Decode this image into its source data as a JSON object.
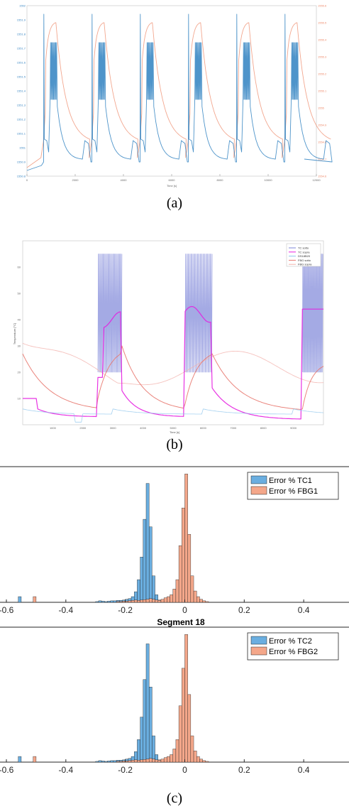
{
  "captions": {
    "a": "(a)",
    "b": "(b)",
    "c": "(c)"
  },
  "chart_data": [
    {
      "id": "a",
      "type": "line",
      "xlabel": "Time [s]",
      "ylabel": "",
      "y2label": "",
      "xlim": [
        0,
        12000
      ],
      "x_ticks": [
        "0",
        "2000",
        "4000",
        "6000",
        "8000",
        "10000",
        "12000"
      ],
      "y_ticks_left": [
        "1550.8",
        "1550.9",
        "1551",
        "1551.1",
        "1551.2",
        "1551.3",
        "1551.4",
        "1551.5",
        "1551.6",
        "1551.7",
        "1551.8",
        "1551.9",
        "1552"
      ],
      "y_ticks_right": [
        "1554.6",
        "1554.7",
        "1554.8",
        "1554.9",
        "1555",
        "1555.1",
        "1555.2",
        "1555.3",
        "1555.4",
        "1555.5",
        "1555.6"
      ],
      "cycles": 6,
      "series": [
        {
          "color": "#3b88c4"
        },
        {
          "color": "#ee8a6a"
        }
      ]
    },
    {
      "id": "b",
      "type": "line",
      "xlabel": "Time [s]",
      "ylabel": "Temperature [°C]",
      "xlim": [
        0,
        10000
      ],
      "x_ticks": [
        "1000",
        "2000",
        "3000",
        "4000",
        "5000",
        "6000",
        "7000",
        "8000",
        "9000"
      ],
      "y_ticks": [
        "10",
        "20",
        "30",
        "40",
        "50",
        "60"
      ],
      "legend": [
        "TC sotto",
        "TC sopra",
        "DS18B20",
        "FBG sotto",
        "FBG sopra"
      ],
      "series": [
        {
          "color": "#7d86d8"
        },
        {
          "color": "#e61ee0"
        },
        {
          "color": "#8fc6ec"
        },
        {
          "color": "#e8786f"
        },
        {
          "color": "#f2b3ae"
        }
      ]
    },
    {
      "id": "c1",
      "type": "bar",
      "title": "",
      "xlim": [
        -0.6,
        0.55
      ],
      "x_ticks": [
        "-0.6",
        "-0.4",
        "-0.2",
        "0",
        "0.2",
        "0.4"
      ],
      "legend": [
        "Error % TC1",
        "Error % FBG1"
      ],
      "bin_width": 0.01,
      "series": [
        {
          "name": "Error % TC1",
          "color": "#6aaee0",
          "centers": [
            -0.555,
            -0.295,
            -0.285,
            -0.275,
            -0.265,
            -0.255,
            -0.245,
            -0.235,
            -0.225,
            -0.215,
            -0.205,
            -0.195,
            -0.185,
            -0.175,
            -0.165,
            -0.155,
            -0.145,
            -0.135,
            -0.125,
            -0.115,
            -0.105,
            -0.095,
            -0.085,
            -0.075
          ],
          "values": [
            15,
            2,
            4,
            3,
            2,
            3,
            4,
            4,
            5,
            5,
            6,
            8,
            10,
            15,
            28,
            60,
            120,
            220,
            315,
            200,
            70,
            20,
            6,
            2
          ]
        },
        {
          "name": "Error % FBG1",
          "color": "#f4a78a",
          "centers": [
            -0.505,
            -0.225,
            -0.215,
            -0.205,
            -0.195,
            -0.185,
            -0.175,
            -0.165,
            -0.155,
            -0.145,
            -0.135,
            -0.125,
            -0.115,
            -0.105,
            -0.095,
            -0.085,
            -0.075,
            -0.065,
            -0.055,
            -0.045,
            -0.035,
            -0.025,
            -0.015,
            -0.005,
            0.005,
            0.015,
            0.025,
            0.035,
            0.045,
            0.055,
            0.065,
            0.075
          ],
          "values": [
            15,
            2,
            2,
            3,
            3,
            4,
            5,
            6,
            5,
            6,
            7,
            8,
            10,
            8,
            6,
            5,
            8,
            12,
            15,
            20,
            35,
            60,
            150,
            250,
            340,
            180,
            70,
            30,
            15,
            8,
            4,
            2
          ]
        }
      ]
    },
    {
      "id": "c2",
      "type": "bar",
      "title": "Segment 18",
      "xlim": [
        -0.6,
        0.55
      ],
      "x_ticks": [
        "-0.6",
        "-0.4",
        "-0.2",
        "0",
        "0.2",
        "0.4"
      ],
      "legend": [
        "Error % TC2",
        "Error % FBG2"
      ],
      "bin_width": 0.01,
      "series": [
        {
          "name": "Error % TC2",
          "color": "#6aaee0",
          "centers": [
            -0.555,
            -0.295,
            -0.285,
            -0.275,
            -0.265,
            -0.255,
            -0.245,
            -0.235,
            -0.225,
            -0.215,
            -0.205,
            -0.195,
            -0.185,
            -0.175,
            -0.165,
            -0.155,
            -0.145,
            -0.135,
            -0.125,
            -0.115,
            -0.105,
            -0.095,
            -0.085,
            -0.075
          ],
          "values": [
            15,
            2,
            4,
            3,
            2,
            3,
            4,
            4,
            5,
            5,
            6,
            8,
            10,
            15,
            28,
            60,
            120,
            220,
            315,
            200,
            70,
            20,
            6,
            2
          ]
        },
        {
          "name": "Error % FBG2",
          "color": "#f4a78a",
          "centers": [
            -0.505,
            -0.225,
            -0.215,
            -0.205,
            -0.195,
            -0.185,
            -0.175,
            -0.165,
            -0.155,
            -0.145,
            -0.135,
            -0.125,
            -0.115,
            -0.105,
            -0.095,
            -0.085,
            -0.075,
            -0.065,
            -0.055,
            -0.045,
            -0.035,
            -0.025,
            -0.015,
            -0.005,
            0.005,
            0.015,
            0.025,
            0.035,
            0.045,
            0.055,
            0.065,
            0.075
          ],
          "values": [
            15,
            2,
            2,
            3,
            3,
            4,
            5,
            6,
            5,
            6,
            7,
            8,
            10,
            8,
            6,
            5,
            8,
            12,
            15,
            20,
            35,
            60,
            150,
            250,
            340,
            180,
            70,
            30,
            15,
            8,
            4,
            2
          ]
        }
      ]
    }
  ]
}
